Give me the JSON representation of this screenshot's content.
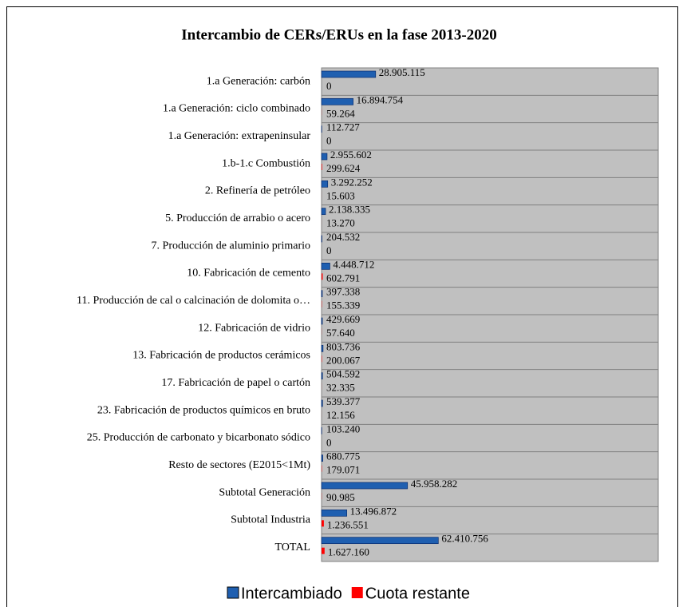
{
  "chart_data": {
    "type": "bar",
    "orientation": "horizontal",
    "title": "Intercambio de CERs/ERUs en la fase 2013-2020",
    "categories": [
      "1.a Generación: carbón",
      "1.a Generación: ciclo combinado",
      "1.a Generación: extrapeninsular",
      "1.b-1.c Combustión",
      "2. Refinería de petróleo",
      "5. Producción de arrabio o acero",
      "7. Producción de aluminio primario",
      "10. Fabricación de cemento",
      "11. Producción de cal o calcinación de dolomita o…",
      "12. Fabricación de vidrio",
      "13. Fabricación de productos cerámicos",
      "17. Fabricación de papel o cartón",
      "23. Fabricación de productos químicos en bruto",
      "25. Producción de carbonato y bicarbonato sódico",
      "Resto de sectores (E2015<1Mt)",
      "Subtotal Generación",
      "Subtotal Industria",
      "TOTAL"
    ],
    "series": [
      {
        "name": "Intercambiado",
        "color": "#1f5fb0",
        "values": [
          28905115,
          16894754,
          112727,
          2955602,
          3292252,
          2138335,
          204532,
          4448712,
          397338,
          429669,
          803736,
          504592,
          539377,
          103240,
          680775,
          45958282,
          13496872,
          62410756
        ],
        "value_labels": [
          "28.905.115",
          "16.894.754",
          "112.727",
          "2.955.602",
          "3.292.252",
          "2.138.335",
          "204.532",
          "4.448.712",
          "397.338",
          "429.669",
          "803.736",
          "504.592",
          "539.377",
          "103.240",
          "680.775",
          "45.958.282",
          "13.496.872",
          "62.410.756"
        ]
      },
      {
        "name": "Cuota restante",
        "color": "#ff0000",
        "values": [
          0,
          59264,
          0,
          299624,
          15603,
          13270,
          0,
          602791,
          155339,
          57640,
          200067,
          32335,
          12156,
          0,
          179071,
          90985,
          1236551,
          1627160
        ],
        "value_labels": [
          "0",
          "59.264",
          "0",
          "299.624",
          "15.603",
          "13.270",
          "0",
          "602.791",
          "155.339",
          "57.640",
          "200.067",
          "32.335",
          "12.156",
          "0",
          "179.071",
          "90.985",
          "1.236.551",
          "1.627.160"
        ]
      }
    ],
    "xlim": [
      0,
      180000000
    ],
    "legend": "bottom"
  }
}
